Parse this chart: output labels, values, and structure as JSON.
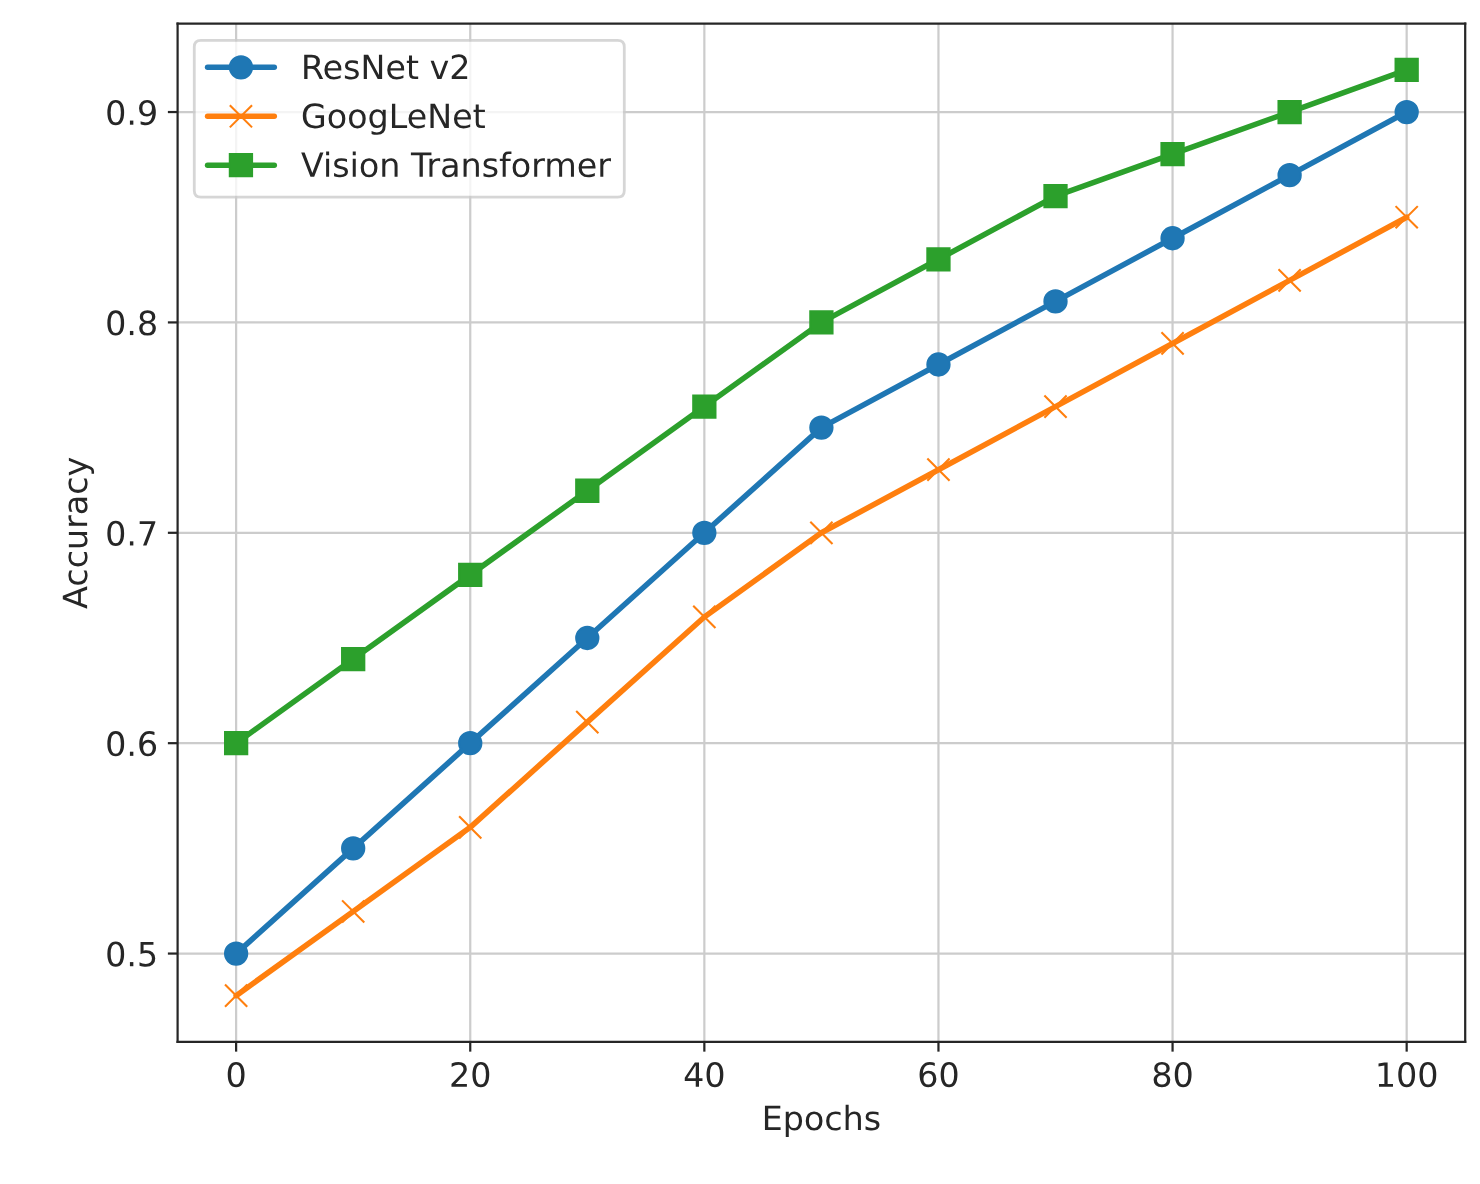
{
  "chart_data": {
    "type": "line",
    "xlabel": "Epochs",
    "ylabel": "Accuracy",
    "x": [
      0,
      10,
      20,
      30,
      40,
      50,
      60,
      70,
      80,
      90,
      100
    ],
    "series": [
      {
        "name": "ResNet v2",
        "color": "#1f77b4",
        "marker": "circle",
        "values": [
          0.5,
          0.55,
          0.6,
          0.65,
          0.7,
          0.75,
          0.78,
          0.81,
          0.84,
          0.87,
          0.9
        ]
      },
      {
        "name": "GoogLeNet",
        "color": "#ff7f0e",
        "marker": "cross",
        "values": [
          0.48,
          0.52,
          0.56,
          0.61,
          0.66,
          0.7,
          0.73,
          0.76,
          0.79,
          0.82,
          0.85
        ]
      },
      {
        "name": "Vision Transformer",
        "color": "#2ca02c",
        "marker": "square",
        "values": [
          0.6,
          0.64,
          0.68,
          0.72,
          0.76,
          0.8,
          0.83,
          0.86,
          0.88,
          0.9,
          0.92
        ]
      }
    ],
    "xlim": [
      -5,
      105
    ],
    "xticks": [
      0,
      20,
      40,
      60,
      80,
      100
    ],
    "ylim": [
      0.458,
      0.942
    ],
    "yticks": [
      0.5,
      0.6,
      0.7,
      0.8,
      0.9
    ],
    "grid": true,
    "legend": "top left",
    "line_style": "solid"
  }
}
